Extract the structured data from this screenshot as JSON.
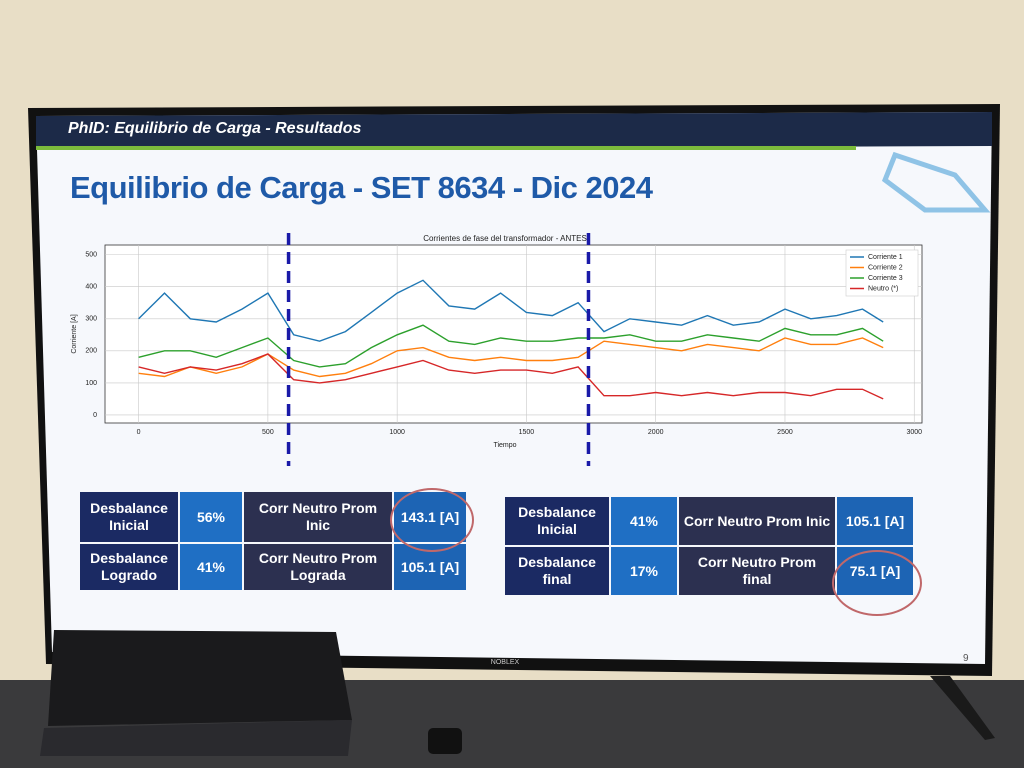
{
  "header": {
    "title": "PhID: Equilibrio de Carga - Resultados"
  },
  "slide_title": "Equilibrio de Carga - SET 8634 - Dic 2024",
  "chart_data": {
    "type": "line",
    "title": "Corrientes de fase del transformador - ANTES",
    "x_label": "Tiempo",
    "y_label": "Corriente [A]",
    "x": [
      0,
      100,
      200,
      300,
      400,
      500,
      600,
      700,
      800,
      900,
      1000,
      1100,
      1200,
      1300,
      1400,
      1500,
      1600,
      1700,
      1800,
      1900,
      2000,
      2100,
      2200,
      2300,
      2400,
      2500,
      2600,
      2700,
      2800,
      2880
    ],
    "series": [
      {
        "name": "Corriente 1",
        "color": "#1f77b4",
        "values": [
          300,
          380,
          300,
          290,
          330,
          380,
          250,
          230,
          260,
          320,
          380,
          420,
          340,
          330,
          380,
          320,
          310,
          350,
          260,
          300,
          290,
          280,
          310,
          280,
          290,
          330,
          300,
          310,
          330,
          290
        ]
      },
      {
        "name": "Corriente 2",
        "color": "#ff7f0e",
        "values": [
          130,
          120,
          150,
          130,
          150,
          190,
          140,
          120,
          130,
          160,
          200,
          210,
          180,
          170,
          180,
          170,
          170,
          180,
          230,
          220,
          210,
          200,
          220,
          210,
          200,
          240,
          220,
          220,
          240,
          210
        ]
      },
      {
        "name": "Corriente 3",
        "color": "#2ca02c",
        "values": [
          180,
          200,
          200,
          180,
          210,
          240,
          170,
          150,
          160,
          210,
          250,
          280,
          230,
          220,
          240,
          230,
          230,
          240,
          240,
          250,
          230,
          230,
          250,
          240,
          230,
          270,
          250,
          250,
          270,
          230
        ]
      },
      {
        "name": "Neutro (*)",
        "color": "#d62728",
        "values": [
          150,
          130,
          150,
          140,
          160,
          190,
          110,
          100,
          110,
          130,
          150,
          170,
          140,
          130,
          140,
          140,
          130,
          150,
          60,
          60,
          70,
          60,
          70,
          60,
          70,
          70,
          60,
          80,
          80,
          50
        ]
      }
    ],
    "vlines": [
      580,
      1740
    ],
    "vline_color": "#1a1aa8",
    "xlim": [
      -130,
      3030
    ],
    "ylim": [
      -25,
      530
    ],
    "xticks": [
      0,
      500,
      1000,
      1500,
      2000,
      2500,
      3000
    ],
    "yticks": [
      0,
      100,
      200,
      300,
      400,
      500
    ],
    "grid": true,
    "legend": "upper-right"
  },
  "tables": [
    {
      "rows": [
        [
          "Desbalance Inicial",
          "56%",
          "Corr Neutro Prom Inic",
          "143.1 [A]"
        ],
        [
          "Desbalance Logrado",
          "41%",
          "Corr Neutro Prom Lograda",
          "105.1 [A]"
        ]
      ]
    },
    {
      "rows": [
        [
          "Desbalance Inicial",
          "41%",
          "Corr Neutro Prom Inic",
          "105.1 [A]"
        ],
        [
          "Desbalance final",
          "17%",
          "Corr Neutro Prom final",
          "75.1 [A]"
        ]
      ]
    }
  ],
  "page_number": "9",
  "tv_brand": "NOBLEX"
}
